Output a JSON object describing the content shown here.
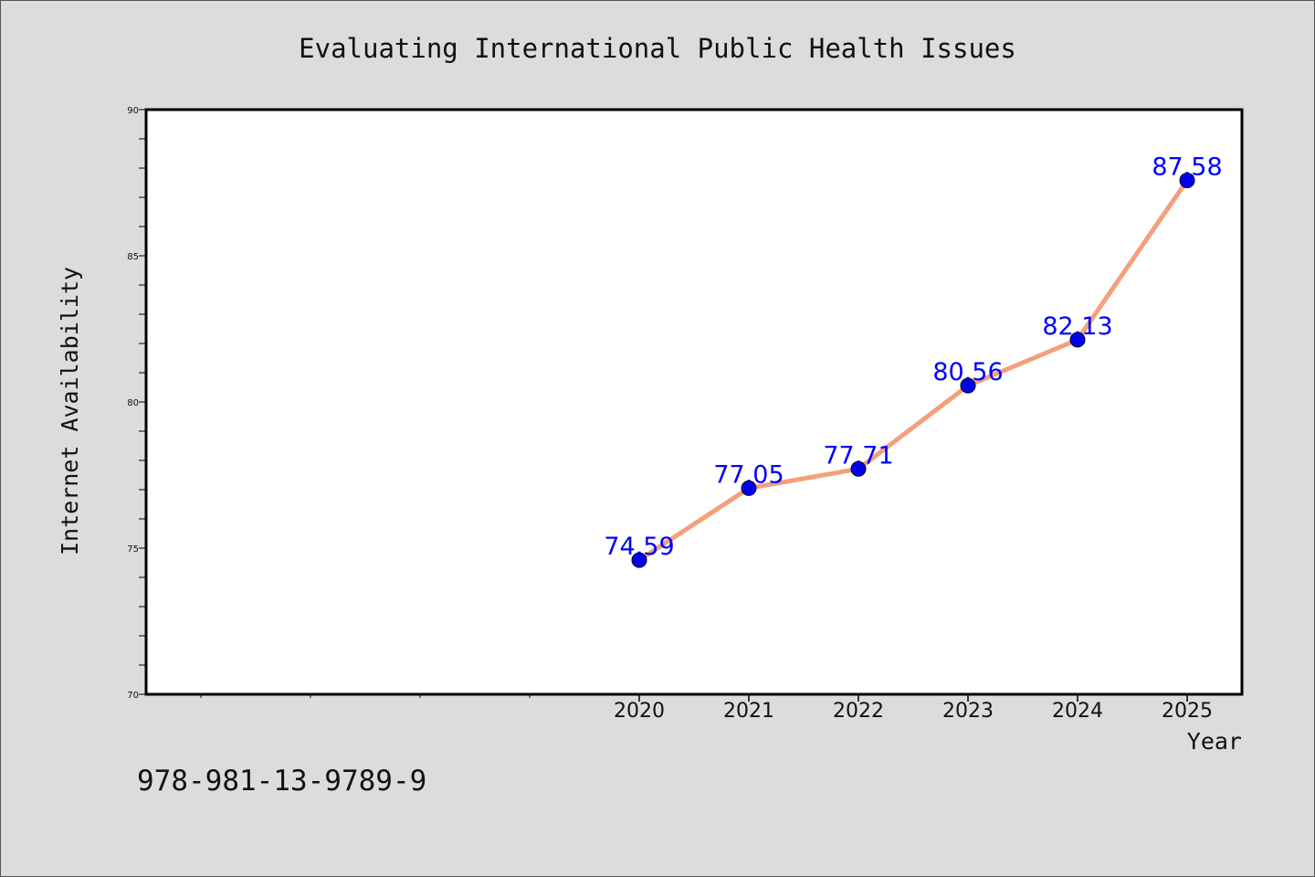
{
  "chart_data": {
    "type": "line",
    "title": "Evaluating International Public Health Issues",
    "xlabel": "Year",
    "ylabel": "Internet Availability",
    "footnote": "978-981-13-9789-9",
    "x": [
      "2020",
      "2021",
      "2022",
      "2023",
      "2024",
      "2025"
    ],
    "y": [
      74.59,
      77.05,
      77.71,
      80.56,
      82.13,
      87.58
    ],
    "data_labels": [
      "74.59",
      "77.05",
      "77.71",
      "80.56",
      "82.13",
      "87.58"
    ],
    "ylim": [
      70,
      90
    ],
    "y_ticks": [
      "70",
      "75",
      "80",
      "85",
      "90"
    ],
    "grid": false,
    "line_color": "#f4a07c",
    "marker_color": "#0000ee",
    "label_color": "#0000ff"
  }
}
